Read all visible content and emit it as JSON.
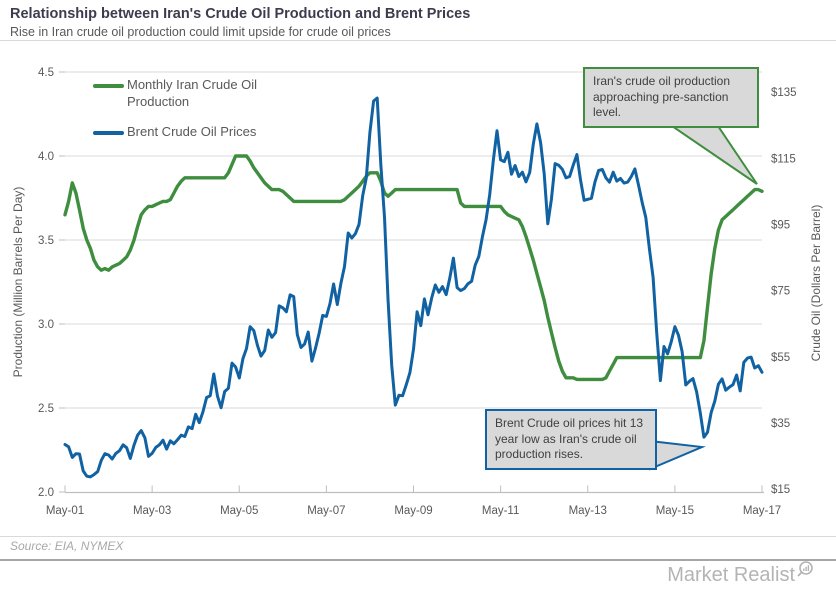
{
  "header": {
    "title": "Relationship between Iran's Crude Oil Production and Brent Prices",
    "subtitle": "Rise in Iran crude oil production could limit upside for crude oil prices"
  },
  "legend": {
    "items": [
      {
        "label": "Monthly Iran Crude Oil Production",
        "color": "#3f8e3f"
      },
      {
        "label": "Brent Crude Oil Prices",
        "color": "#1162a2"
      }
    ]
  },
  "annotations": {
    "production": {
      "text": "Iran's crude oil production approaching pre-sanction level.",
      "border_color": "#3f8e3f",
      "fill": "#d9d9d9"
    },
    "brent": {
      "text": "Brent Crude oil prices hit 13 year low as Iran's crude oil production rises.",
      "border_color": "#1162a2",
      "fill": "#d9d9d9"
    }
  },
  "footer": {
    "source": "Source: EIA, NYMEX",
    "brand": "Market Realist"
  },
  "chart_data": {
    "type": "line",
    "x_frequency": "monthly",
    "x_start": "May-2001",
    "x_end": "May-2017",
    "grid": "horizontal",
    "legend_position": "top-left-inside",
    "x_axis": {
      "ticks": [
        {
          "label": "May-01",
          "month": 0
        },
        {
          "label": "May-03",
          "month": 24
        },
        {
          "label": "May-05",
          "month": 48
        },
        {
          "label": "May-07",
          "month": 72
        },
        {
          "label": "May-09",
          "month": 96
        },
        {
          "label": "May-11",
          "month": 120
        },
        {
          "label": "May-13",
          "month": 144
        },
        {
          "label": "May-15",
          "month": 168
        },
        {
          "label": "May-17",
          "month": 192
        }
      ]
    },
    "left_axis": {
      "label": "Production (Million Barrels Per Day)",
      "range": [
        2.0,
        4.5
      ],
      "ticks": [
        {
          "label": "4.5",
          "value": 4.5
        },
        {
          "label": "4.0",
          "value": 4.0
        },
        {
          "label": "3.5",
          "value": 3.5
        },
        {
          "label": "3.0",
          "value": 3.0
        },
        {
          "label": "2.5",
          "value": 2.5
        },
        {
          "label": "2.0",
          "value": 2.0
        }
      ]
    },
    "right_axis": {
      "label": "Crude Oil (Dollars Per Barrel)",
      "range": [
        15,
        135
      ],
      "ticks": [
        {
          "label": "$135",
          "value": 135
        },
        {
          "label": "$115",
          "value": 115
        },
        {
          "label": "$95",
          "value": 95
        },
        {
          "label": "$75",
          "value": 75
        },
        {
          "label": "$55",
          "value": 55
        },
        {
          "label": "$35",
          "value": 35
        },
        {
          "label": "$15",
          "value": 15
        }
      ]
    },
    "series": [
      {
        "name": "Monthly Iran Crude Oil Production",
        "axis": "left",
        "color": "#3f8e3f",
        "stroke_width": 3.4,
        "values": [
          3.65,
          3.73,
          3.84,
          3.78,
          3.68,
          3.57,
          3.5,
          3.45,
          3.38,
          3.34,
          3.32,
          3.33,
          3.32,
          3.34,
          3.35,
          3.36,
          3.38,
          3.4,
          3.44,
          3.5,
          3.58,
          3.65,
          3.68,
          3.7,
          3.7,
          3.71,
          3.72,
          3.73,
          3.73,
          3.74,
          3.78,
          3.82,
          3.85,
          3.87,
          3.87,
          3.87,
          3.87,
          3.87,
          3.87,
          3.87,
          3.87,
          3.87,
          3.87,
          3.87,
          3.87,
          3.9,
          3.95,
          4.0,
          4.0,
          4.0,
          4.0,
          3.97,
          3.93,
          3.9,
          3.87,
          3.84,
          3.82,
          3.8,
          3.8,
          3.8,
          3.79,
          3.77,
          3.75,
          3.73,
          3.73,
          3.73,
          3.73,
          3.73,
          3.73,
          3.73,
          3.73,
          3.73,
          3.73,
          3.73,
          3.73,
          3.73,
          3.73,
          3.74,
          3.76,
          3.78,
          3.8,
          3.82,
          3.85,
          3.88,
          3.9,
          3.9,
          3.9,
          3.85,
          3.78,
          3.76,
          3.78,
          3.8,
          3.8,
          3.8,
          3.8,
          3.8,
          3.8,
          3.8,
          3.8,
          3.8,
          3.8,
          3.8,
          3.8,
          3.8,
          3.8,
          3.8,
          3.8,
          3.8,
          3.8,
          3.72,
          3.7,
          3.7,
          3.7,
          3.7,
          3.7,
          3.7,
          3.7,
          3.7,
          3.7,
          3.7,
          3.7,
          3.67,
          3.65,
          3.64,
          3.63,
          3.62,
          3.58,
          3.52,
          3.45,
          3.38,
          3.3,
          3.22,
          3.14,
          3.04,
          2.95,
          2.86,
          2.78,
          2.72,
          2.68,
          2.68,
          2.68,
          2.67,
          2.67,
          2.67,
          2.67,
          2.67,
          2.67,
          2.67,
          2.67,
          2.68,
          2.72,
          2.76,
          2.8,
          2.8,
          2.8,
          2.8,
          2.8,
          2.8,
          2.8,
          2.8,
          2.8,
          2.8,
          2.8,
          2.8,
          2.8,
          2.8,
          2.8,
          2.8,
          2.8,
          2.8,
          2.8,
          2.8,
          2.8,
          2.8,
          2.8,
          2.8,
          2.9,
          3.1,
          3.3,
          3.45,
          3.56,
          3.62,
          3.64,
          3.66,
          3.68,
          3.7,
          3.72,
          3.74,
          3.76,
          3.78,
          3.8,
          3.8,
          3.79
        ]
      },
      {
        "name": "Brent Crude Oil Prices",
        "axis": "right",
        "color": "#1162a2",
        "stroke_width": 3.0,
        "values": [
          28.5,
          27.8,
          24.6,
          25.7,
          25.6,
          20.5,
          18.9,
          18.7,
          19.4,
          20.3,
          23.7,
          25.7,
          25.3,
          24.1,
          25.8,
          26.6,
          28.4,
          27.5,
          24.3,
          28.3,
          31.3,
          32.7,
          30.5,
          24.9,
          25.8,
          27.6,
          28.4,
          29.8,
          27.1,
          29.6,
          28.7,
          29.9,
          31.3,
          30.9,
          33.8,
          33.3,
          37.6,
          35.1,
          38.3,
          42.7,
          43.2,
          49.8,
          43.1,
          39.6,
          44.5,
          45.5,
          53.1,
          51.9,
          48.6,
          54.4,
          57.5,
          64.1,
          62.9,
          58.5,
          55.2,
          56.9,
          63.1,
          60.9,
          62.3,
          70.4,
          69.8,
          68.6,
          73.7,
          73.2,
          61.7,
          57.8,
          58.9,
          62.5,
          53.7,
          57.6,
          62.1,
          67.5,
          67.2,
          71.1,
          77.0,
          70.8,
          77.2,
          82.3,
          92.4,
          90.9,
          92.2,
          95.0,
          103.7,
          109.1,
          122.8,
          132.3,
          133.2,
          113.2,
          97.2,
          71.9,
          52.5,
          40.4,
          43.4,
          43.2,
          46.5,
          50.2,
          57.3,
          68.6,
          64.4,
          72.5,
          67.7,
          72.8,
          76.7,
          74.5,
          76.2,
          73.8,
          78.8,
          84.8,
          75.9,
          75.0,
          75.6,
          77.1,
          77.8,
          82.7,
          85.3,
          91.4,
          96.5,
          104.0,
          114.6,
          123.3,
          114.5,
          114.0,
          116.8,
          110.2,
          112.8,
          109.5,
          110.8,
          107.9,
          110.7,
          119.3,
          125.4,
          119.7,
          110.3,
          95.2,
          102.6,
          113.4,
          112.9,
          111.7,
          109.1,
          109.5,
          112.9,
          116.1,
          108.5,
          102.3,
          102.6,
          102.9,
          107.9,
          111.3,
          111.6,
          109.1,
          107.8,
          110.8,
          108.1,
          108.9,
          107.5,
          107.8,
          109.5,
          111.8,
          106.8,
          101.6,
          97.1,
          87.4,
          79.0,
          62.3,
          47.8,
          58.1,
          55.9,
          59.5,
          64.1,
          61.5,
          56.6,
          46.5,
          47.6,
          48.4,
          44.3,
          38.0,
          30.7,
          32.2,
          38.2,
          41.6,
          46.7,
          48.3,
          44.9,
          45.8,
          46.6,
          49.5,
          44.7,
          53.3,
          54.6,
          54.9,
          51.6,
          52.3,
          50.3
        ]
      }
    ]
  }
}
